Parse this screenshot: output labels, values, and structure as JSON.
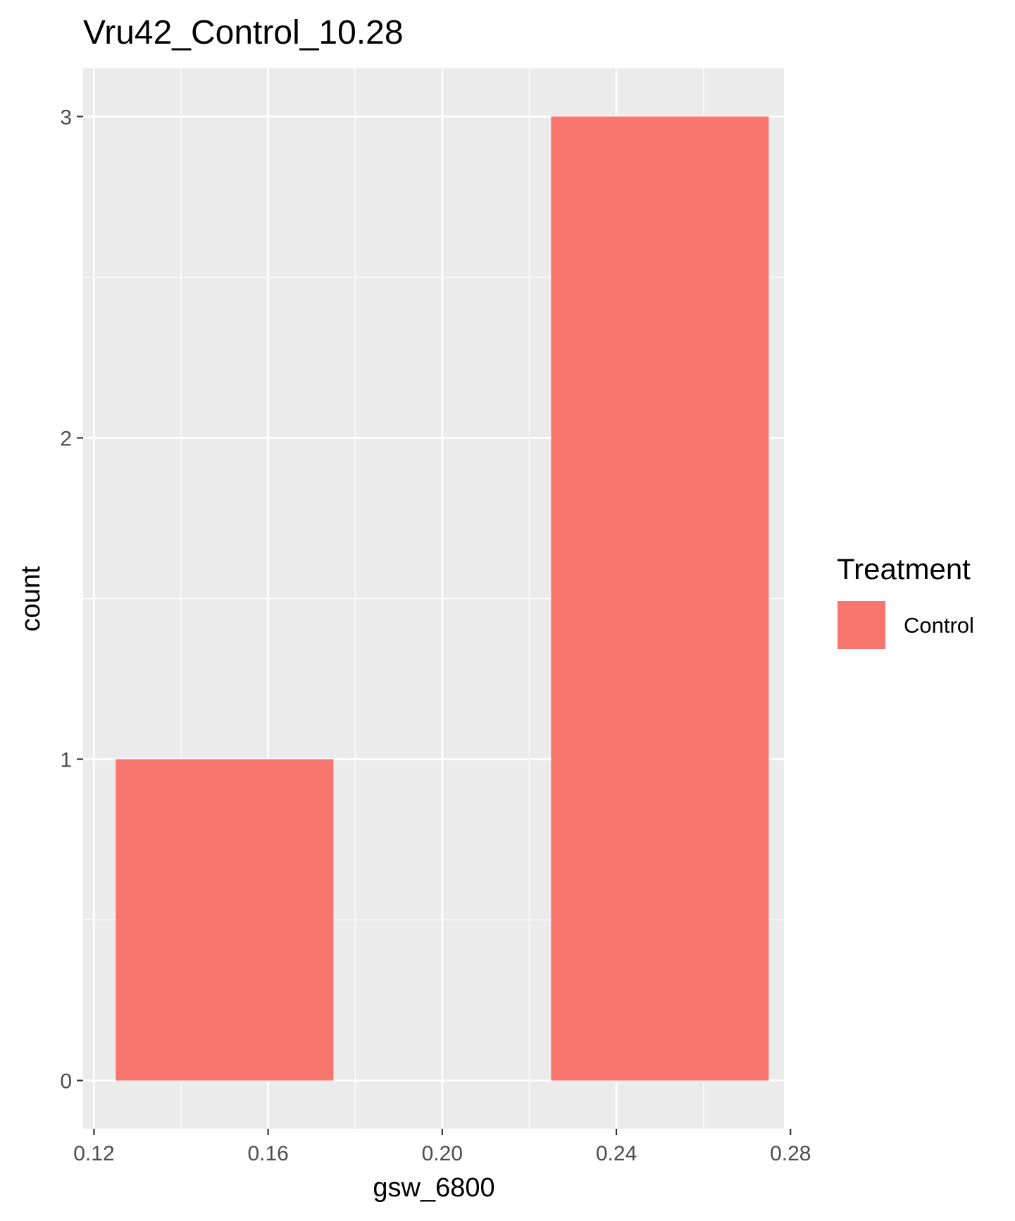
{
  "chart_data": {
    "type": "bar",
    "title": "Vru42_Control_10.28",
    "xlabel": "gsw_6800",
    "ylabel": "count",
    "xlim": [
      0.1175,
      0.2785
    ],
    "ylim": [
      -0.15,
      3.15
    ],
    "x_ticks": [
      "0.12",
      "0.16",
      "0.20",
      "0.24",
      "0.28"
    ],
    "y_ticks": [
      "0",
      "1",
      "2",
      "3"
    ],
    "grid": true,
    "bars": [
      {
        "x_start": 0.125,
        "x_end": 0.175,
        "count": 1
      },
      {
        "x_start": 0.225,
        "x_end": 0.275,
        "count": 3
      }
    ],
    "series": [
      {
        "name": "Control",
        "color": "#F8766D"
      }
    ],
    "legend": {
      "title": "Treatment",
      "position": "right",
      "entries": [
        "Control"
      ]
    },
    "colors": {
      "panel": "#EBEBEB",
      "grid": "#FFFFFF",
      "bar": "#F8766D"
    }
  }
}
